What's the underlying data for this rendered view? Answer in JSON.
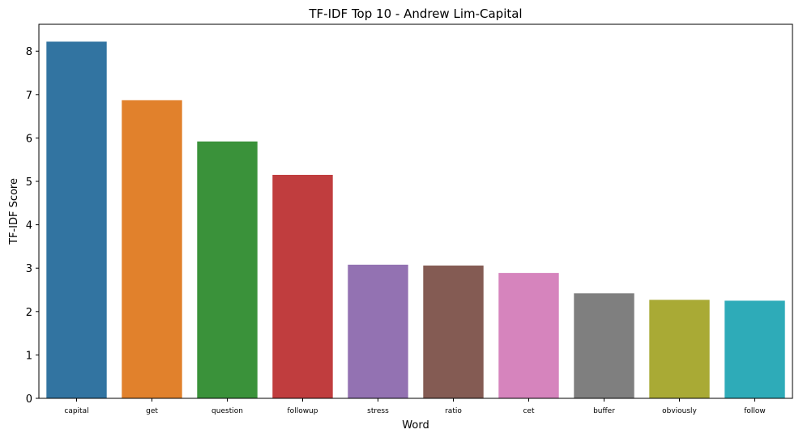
{
  "chart_data": {
    "type": "bar",
    "title": "TF-IDF Top 10 - Andrew Lim-Capital",
    "xlabel": "Word",
    "ylabel": "TF-IDF Score",
    "categories": [
      "capital",
      "get",
      "question",
      "followup",
      "stress",
      "ratio",
      "cet",
      "buffer",
      "obviously",
      "follow"
    ],
    "values": [
      8.22,
      6.87,
      5.92,
      5.15,
      3.08,
      3.06,
      2.89,
      2.42,
      2.27,
      2.25
    ],
    "colors": [
      "#3274a1",
      "#e1812c",
      "#3a923a",
      "#c03d3e",
      "#9372b2",
      "#845b53",
      "#d684bd",
      "#7f7f7f",
      "#a9aa35",
      "#2eabb8"
    ],
    "ylim": [
      0,
      8.62
    ],
    "yticks": [
      0,
      1,
      2,
      3,
      4,
      5,
      6,
      7,
      8
    ],
    "grid": false,
    "legend": "none"
  }
}
